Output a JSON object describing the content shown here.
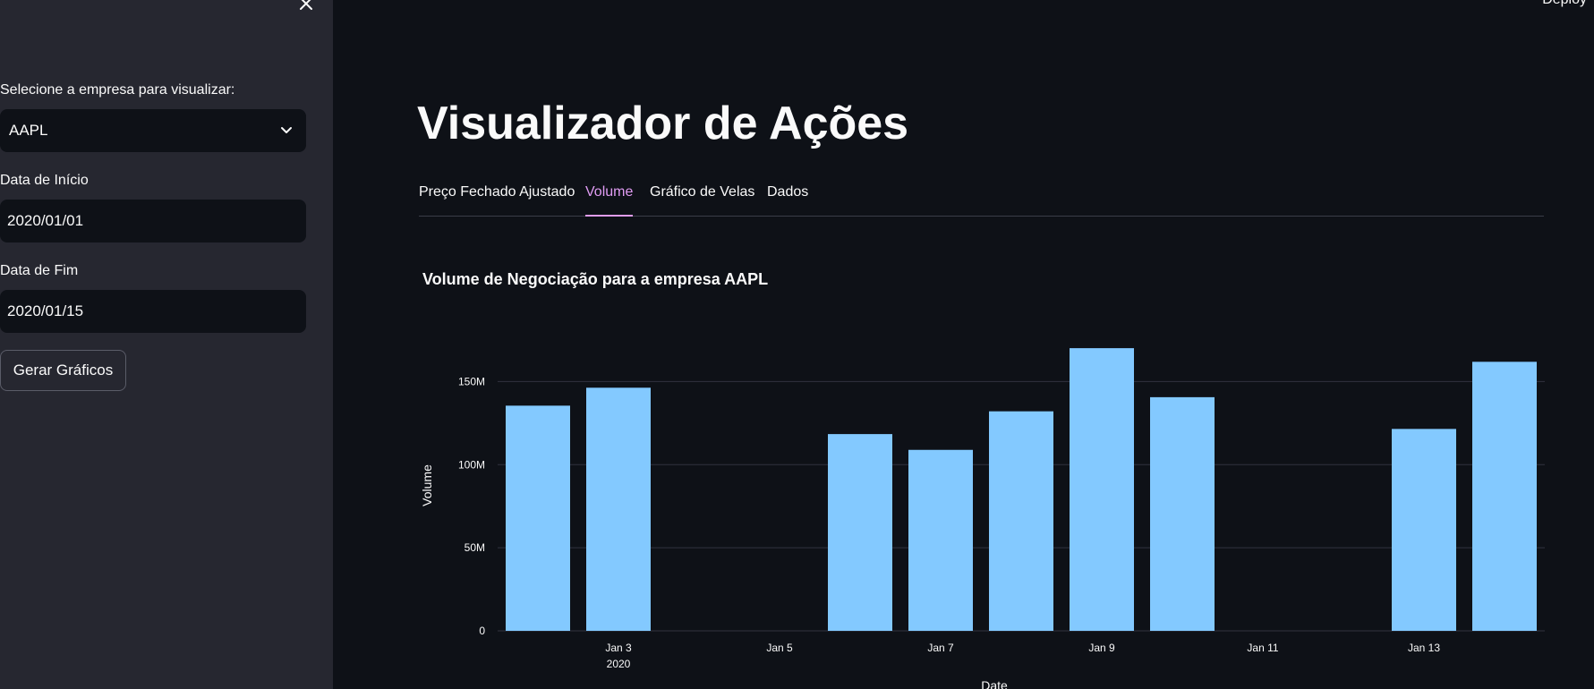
{
  "sidebar": {
    "close_icon": "close-icon",
    "company_label": "Selecione a empresa para visualizar:",
    "company_selected": "AAPL",
    "start_label": "Data de Início",
    "start_value": "2020/01/01",
    "end_label": "Data de Fim",
    "end_value": "2020/01/15",
    "generate_button": "Gerar Gráficos"
  },
  "header": {
    "deploy": "Deploy"
  },
  "main": {
    "title": "Visualizador de Ações",
    "tabs": [
      {
        "label": "Preço Fechado Ajustado",
        "active": false
      },
      {
        "label": "Volume",
        "active": true
      },
      {
        "label": "Gráfico de Velas",
        "active": false
      },
      {
        "label": "Dados",
        "active": false
      }
    ],
    "chart_title": "Volume de Negociação para a empresa AAPL"
  },
  "colors": {
    "bar": "#83c9ff",
    "accent": "#e09cf3",
    "sidebar_bg": "#262730",
    "main_bg": "#0e1117"
  },
  "chart_data": {
    "type": "bar",
    "title": "Volume de Negociação para a empresa AAPL",
    "xlabel": "Date",
    "ylabel": "Volume",
    "x": [
      "2020-01-02",
      "2020-01-03",
      "2020-01-06",
      "2020-01-07",
      "2020-01-08",
      "2020-01-09",
      "2020-01-10",
      "2020-01-13",
      "2020-01-14"
    ],
    "values": [
      135500000,
      146300000,
      118400000,
      108900000,
      132100000,
      170100000,
      140600000,
      121500000,
      161900000
    ],
    "ylim": [
      0,
      175000000
    ],
    "xlim": [
      "2020-01-01T12:00",
      "2020-01-14T12:00"
    ],
    "yticks": [
      {
        "value": 0,
        "label": "0"
      },
      {
        "value": 50000000,
        "label": "50M"
      },
      {
        "value": 100000000,
        "label": "100M"
      },
      {
        "value": 150000000,
        "label": "150M"
      }
    ],
    "xticks": [
      {
        "date": "2020-01-03",
        "label": "Jan 3",
        "sublabel": "2020"
      },
      {
        "date": "2020-01-05",
        "label": "Jan 5",
        "sublabel": ""
      },
      {
        "date": "2020-01-07",
        "label": "Jan 7",
        "sublabel": ""
      },
      {
        "date": "2020-01-09",
        "label": "Jan 9",
        "sublabel": ""
      },
      {
        "date": "2020-01-11",
        "label": "Jan 11",
        "sublabel": ""
      },
      {
        "date": "2020-01-13",
        "label": "Jan 13",
        "sublabel": ""
      }
    ],
    "grid": true
  }
}
